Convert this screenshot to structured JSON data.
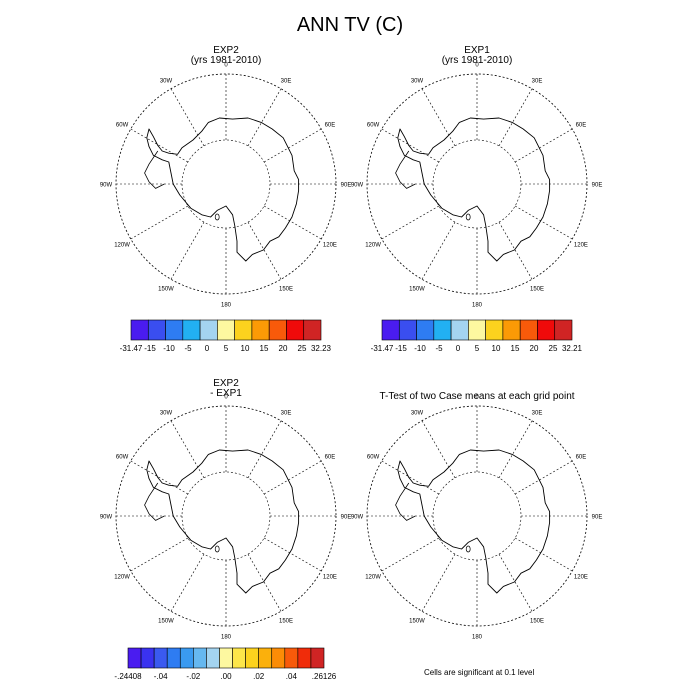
{
  "title": "ANN TV (C)",
  "map_labels": {
    "lon": [
      "0",
      "30E",
      "60E",
      "90E",
      "120E",
      "150E",
      "180",
      "150W",
      "120W",
      "90W",
      "60W",
      "30W"
    ]
  },
  "panels": [
    {
      "id": "p1",
      "title_line1": "EXP2",
      "title_line2": "(yrs 1981-2010)"
    },
    {
      "id": "p2",
      "title_line1": "EXP1",
      "title_line2": "(yrs 1981-2010)"
    },
    {
      "id": "p3",
      "title_line1": "EXP2",
      "title_line2": "- EXP1"
    },
    {
      "id": "p4",
      "title_line1": "T-Test of two Case means at each grid point",
      "title_line2": ""
    }
  ],
  "colorbars": [
    {
      "id": "cb1",
      "colors": [
        "#4a1cf0",
        "#3a4ef0",
        "#2e7cf2",
        "#22b0f2",
        "#a4d4f0",
        "#fdf8a0",
        "#fcd21e",
        "#fb9a06",
        "#f85a0a",
        "#f00a0a",
        "#d02424"
      ],
      "labels": [
        "-31.47",
        "-15",
        "-10",
        "-5",
        "0",
        "5",
        "10",
        "15",
        "20",
        "25",
        "32.23"
      ]
    },
    {
      "id": "cb2",
      "colors": [
        "#4a1cf0",
        "#3a4ef0",
        "#2e7cf2",
        "#22b0f2",
        "#a4d4f0",
        "#fdf8a0",
        "#fcd21e",
        "#fb9a06",
        "#f85a0a",
        "#f00a0a",
        "#d02424"
      ],
      "labels": [
        "-31.47",
        "-15",
        "-10",
        "-5",
        "0",
        "5",
        "10",
        "15",
        "20",
        "25",
        "32.21"
      ]
    },
    {
      "id": "cb3",
      "colors": [
        "#4a1cf0",
        "#3a32f0",
        "#3a5af0",
        "#2e7cf2",
        "#3a9af0",
        "#66b8f0",
        "#a4d4f0",
        "#fdf8a0",
        "#fde64a",
        "#fcd21e",
        "#fbb00c",
        "#fb8c06",
        "#f85a0a",
        "#f02c0a",
        "#d02424"
      ],
      "labels": [
        "-.24408",
        "-.04",
        "-.02",
        ".00",
        ".02",
        ".04",
        ".26126"
      ]
    }
  ],
  "footnote": "Cells are significant at 0.1 level"
}
